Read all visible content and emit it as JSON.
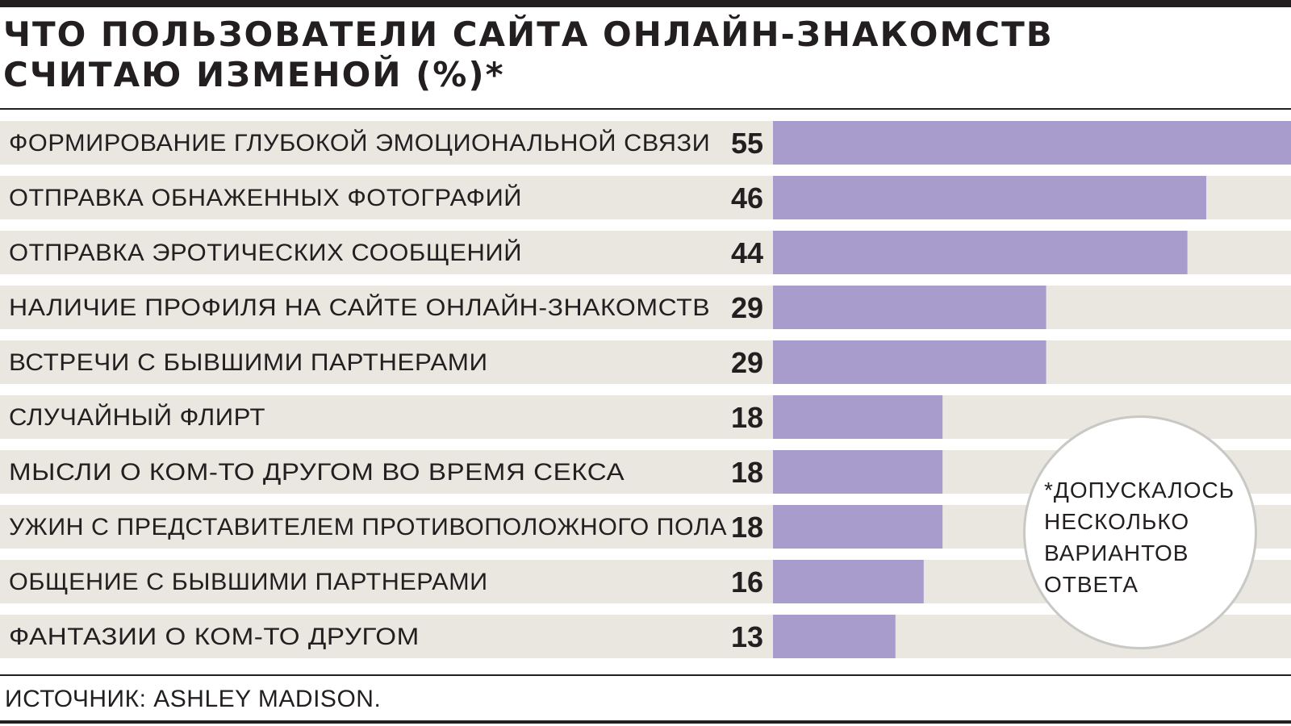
{
  "title_line1": "ЧТО ПОЛЬЗОВАТЕЛИ САЙТА ОНЛАЙН-ЗНАКОМСТВ",
  "title_line2": "СЧИТАЮ ИЗМЕНОЙ (%)*",
  "source": "ИСТОЧНИК: ASHLEY MADISON.",
  "note_lines": [
    "*ДОПУСКАЛОСЬ",
    "НЕСКОЛЬКО",
    "ВАРИАНТОВ",
    "ОТВЕТА"
  ],
  "colors": {
    "bar": "#a79ccb",
    "row_bg": "#e9e7e0",
    "text": "#231f20"
  },
  "chart_data": {
    "type": "bar",
    "orientation": "horizontal",
    "categories": [
      "ФОРМИРОВАНИЕ ГЛУБОКОЙ ЭМОЦИОНАЛЬНОЙ СВЯЗИ",
      "ОТПРАВКА ОБНАЖЕННЫХ ФОТОГРАФИЙ",
      "ОТПРАВКА ЭРОТИЧЕСКИХ СООБЩЕНИЙ",
      "НАЛИЧИЕ ПРОФИЛЯ НА САЙТЕ ОНЛАЙН-ЗНАКОМСТВ",
      "ВСТРЕЧИ С БЫВШИМИ ПАРТНЕРАМИ",
      "СЛУЧАЙНЫЙ ФЛИРТ",
      "МЫСЛИ О КОМ-ТО ДРУГОМ ВО ВРЕМЯ СЕКСА",
      "УЖИН  С ПРЕДСТАВИТЕЛЕМ ПРОТИВОПОЛОЖНОГО ПОЛА",
      "ОБЩЕНИЕ С БЫВШИМИ ПАРТНЕРАМИ",
      "ФАНТАЗИИ О КОМ-ТО ДРУГОМ"
    ],
    "values": [
      55,
      46,
      44,
      29,
      29,
      18,
      18,
      18,
      16,
      13
    ],
    "xlim": [
      0,
      55
    ],
    "grid": false,
    "legend": "none"
  }
}
